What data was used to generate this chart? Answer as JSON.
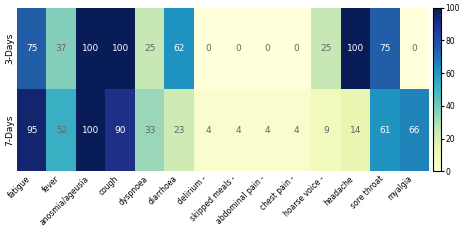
{
  "rows": [
    "3-Days",
    "7-Days"
  ],
  "cols": [
    "fatigue",
    "fever",
    "anosmia/ageusia",
    "cough",
    "dyspnoea",
    "diarrhoea",
    "delirium -",
    "skipped meals -",
    "abdominal pain -",
    "chest pain -",
    "hoarse voice -",
    "headache",
    "sore throat",
    "myalgia"
  ],
  "values": [
    [
      75,
      37,
      100,
      100,
      25,
      62,
      0,
      0,
      0,
      0,
      25,
      100,
      75,
      0
    ],
    [
      95,
      52,
      100,
      90,
      33,
      23,
      4,
      4,
      4,
      4,
      9,
      14,
      61,
      66
    ]
  ],
  "cmap": "YlGnBu",
  "vmin": 0,
  "vmax": 100,
  "colorbar_ticks": [
    0,
    20,
    40,
    60,
    80,
    100
  ],
  "cell_text_fontsize": 6.5,
  "xlabel_fontsize": 5.5,
  "ylabel_fontsize": 6.5
}
